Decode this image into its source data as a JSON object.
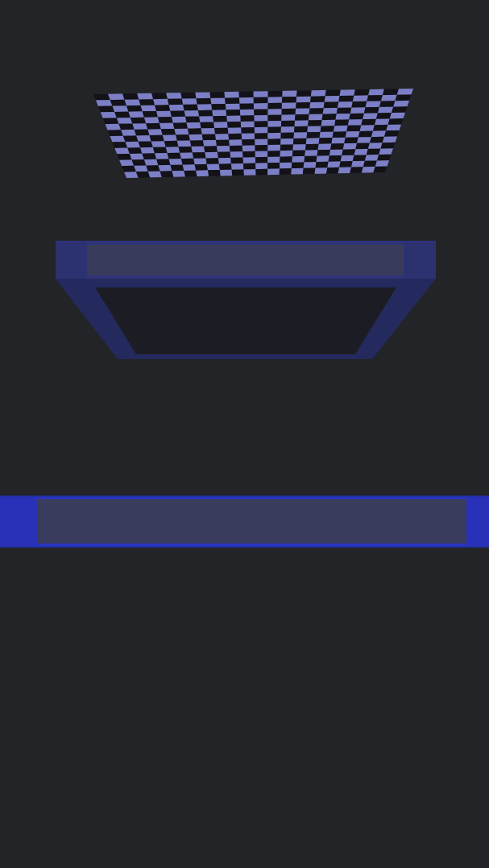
{
  "scene": {
    "background": "#232427",
    "objects": [
      {
        "id": "checker-plane",
        "kind": "checkerboard-plane",
        "colors": {
          "light": "#7c7fc6",
          "dark": "#121218"
        },
        "columns": 22,
        "rows": 14
      },
      {
        "id": "upper-frame",
        "kind": "hollow-box-frame",
        "colors": {
          "rim_front": "#2f3578",
          "rim_post": "#2c3270",
          "inner_back": "#393b5a",
          "bevel": "#24295e",
          "floor": "#1c1d24",
          "edge": "#2b3180"
        }
      },
      {
        "id": "lower-frame",
        "kind": "hollow-box-frame",
        "colors": {
          "rim_front": "#2a34c2",
          "rim_post": "#2931b8",
          "inner_back": "#3a3c5e",
          "edge": "#2230a8"
        }
      }
    ]
  }
}
